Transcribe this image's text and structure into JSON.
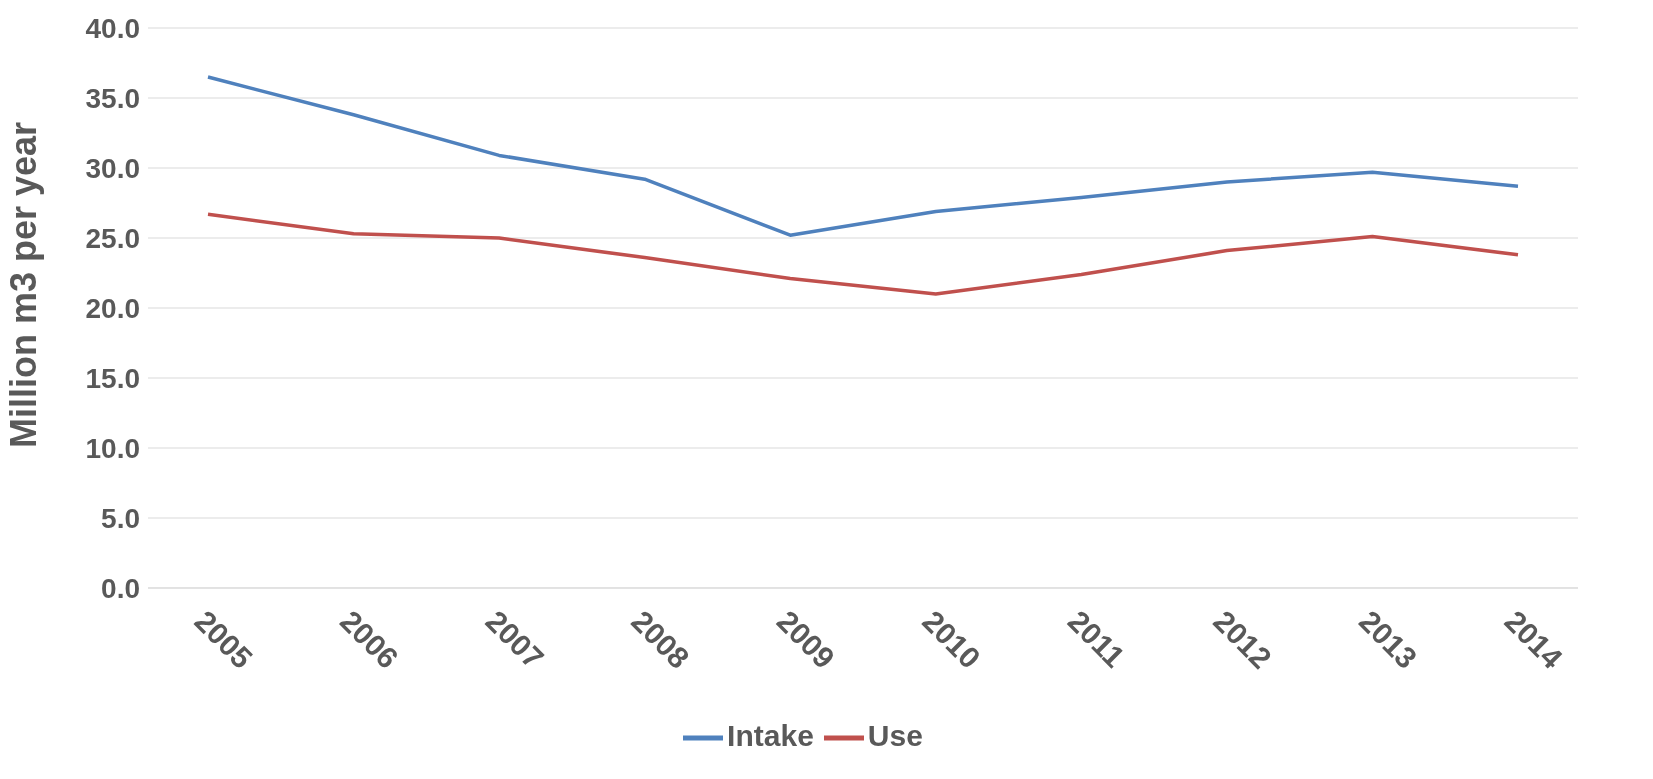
{
  "chart_data": {
    "type": "line",
    "ylabel": "Million m3 per year",
    "categories": [
      "2005",
      "2006",
      "2007",
      "2008",
      "2009",
      "2010",
      "2011",
      "2012",
      "2013",
      "2014"
    ],
    "series": [
      {
        "name": "Intake",
        "color": "#4f81bd",
        "values": [
          36.5,
          33.8,
          30.9,
          29.2,
          25.2,
          26.9,
          27.9,
          29.0,
          29.7,
          28.7
        ]
      },
      {
        "name": "Use",
        "color": "#c0504d",
        "values": [
          26.7,
          25.3,
          25.0,
          23.6,
          22.1,
          21.0,
          22.4,
          24.1,
          25.1,
          23.8
        ]
      }
    ],
    "ylim": [
      0,
      40
    ],
    "yticks": [
      {
        "value": 0,
        "label": "0.0"
      },
      {
        "value": 5,
        "label": "5.0"
      },
      {
        "value": 10,
        "label": "10.0"
      },
      {
        "value": 15,
        "label": "15.0"
      },
      {
        "value": 20,
        "label": "20.0"
      },
      {
        "value": 25,
        "label": "25.0"
      },
      {
        "value": 30,
        "label": "30.0"
      },
      {
        "value": 35,
        "label": "35.0"
      },
      {
        "value": 40,
        "label": "40.0"
      }
    ],
    "grid": "y",
    "legend": "bottom",
    "marker": "none",
    "line_style": "solid"
  }
}
